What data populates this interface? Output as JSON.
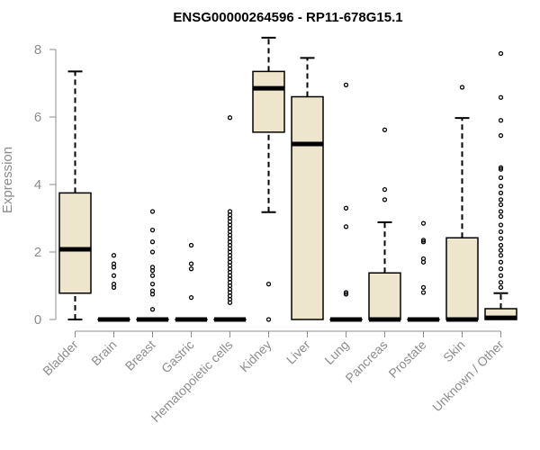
{
  "chart_data": {
    "type": "box",
    "title": "ENSG00000264596 - RP11-678G15.1",
    "xlabel": "",
    "ylabel": "Expression",
    "ylim": [
      0,
      8.2
    ],
    "yticks": [
      0,
      2,
      4,
      6,
      8
    ],
    "grid": false,
    "legend": "none",
    "colors": {
      "box_fill": "#ede6cc",
      "stroke": "#000000",
      "axis": "#8c8c8c"
    },
    "categories": [
      "Bladder",
      "Brain",
      "Breast",
      "Gastric",
      "Hematopoietic cells",
      "Kidney",
      "Liver",
      "Lung",
      "Pancreas",
      "Prostate",
      "Skin",
      "Unknown / Other"
    ],
    "boxes": [
      {
        "category": "Bladder",
        "min": 0.0,
        "q1": 0.78,
        "median": 2.08,
        "q3": 3.75,
        "max": 7.35,
        "outliers": []
      },
      {
        "category": "Brain",
        "min": 0.0,
        "q1": 0.0,
        "median": 0.0,
        "q3": 0.0,
        "max": 0.0,
        "outliers": [
          0.95,
          1.05,
          1.3,
          1.55,
          1.65,
          1.9
        ]
      },
      {
        "category": "Breast",
        "min": 0.0,
        "q1": 0.0,
        "median": 0.0,
        "q3": 0.0,
        "max": 0.0,
        "outliers": [
          0.3,
          0.75,
          0.85,
          1.05,
          1.3,
          1.45,
          1.55,
          2.0,
          2.3,
          2.65,
          3.2
        ]
      },
      {
        "category": "Gastric",
        "min": 0.0,
        "q1": 0.0,
        "median": 0.0,
        "q3": 0.0,
        "max": 0.0,
        "outliers": [
          0.65,
          1.5,
          1.65,
          2.2
        ]
      },
      {
        "category": "Hematopoietic cells",
        "min": 0.0,
        "q1": 0.0,
        "median": 0.0,
        "q3": 0.0,
        "max": 0.0,
        "outliers": [
          0.5,
          0.6,
          0.7,
          0.8,
          0.9,
          1.0,
          1.1,
          1.2,
          1.3,
          1.4,
          1.5,
          1.6,
          1.7,
          1.8,
          1.9,
          2.0,
          2.1,
          2.2,
          2.3,
          2.4,
          2.5,
          2.6,
          2.7,
          2.8,
          2.9,
          3.0,
          3.1,
          3.2,
          5.98
        ]
      },
      {
        "category": "Kidney",
        "min": 3.18,
        "q1": 5.55,
        "median": 6.85,
        "q3": 7.35,
        "max": 8.35,
        "outliers": [
          0.0,
          1.05
        ]
      },
      {
        "category": "Liver",
        "min": 0.0,
        "q1": 0.0,
        "median": 5.2,
        "q3": 6.6,
        "max": 7.75,
        "outliers": []
      },
      {
        "category": "Lung",
        "min": 0.0,
        "q1": 0.0,
        "median": 0.0,
        "q3": 0.0,
        "max": 0.0,
        "outliers": [
          0.75,
          0.8,
          2.75,
          3.3,
          6.95
        ]
      },
      {
        "category": "Pancreas",
        "min": 0.0,
        "q1": 0.0,
        "median": 0.0,
        "q3": 1.38,
        "max": 2.88,
        "outliers": [
          3.55,
          3.85,
          5.62
        ]
      },
      {
        "category": "Prostate",
        "min": 0.0,
        "q1": 0.0,
        "median": 0.0,
        "q3": 0.0,
        "max": 0.0,
        "outliers": [
          0.8,
          0.95,
          1.7,
          1.8,
          2.3,
          2.35,
          2.85
        ]
      },
      {
        "category": "Skin",
        "min": 0.0,
        "q1": 0.0,
        "median": 0.0,
        "q3": 2.42,
        "max": 5.97,
        "outliers": [
          6.88
        ]
      },
      {
        "category": "Unknown / Other",
        "min": 0.0,
        "q1": 0.0,
        "median": 0.05,
        "q3": 0.32,
        "max": 0.78,
        "outliers": [
          0.95,
          1.1,
          1.3,
          1.5,
          1.7,
          1.9,
          2.05,
          2.2,
          2.4,
          2.6,
          2.8,
          3.05,
          3.2,
          3.4,
          3.55,
          3.75,
          3.95,
          4.2,
          4.45,
          4.5,
          5.45,
          5.9,
          6.58,
          7.88
        ]
      }
    ]
  }
}
